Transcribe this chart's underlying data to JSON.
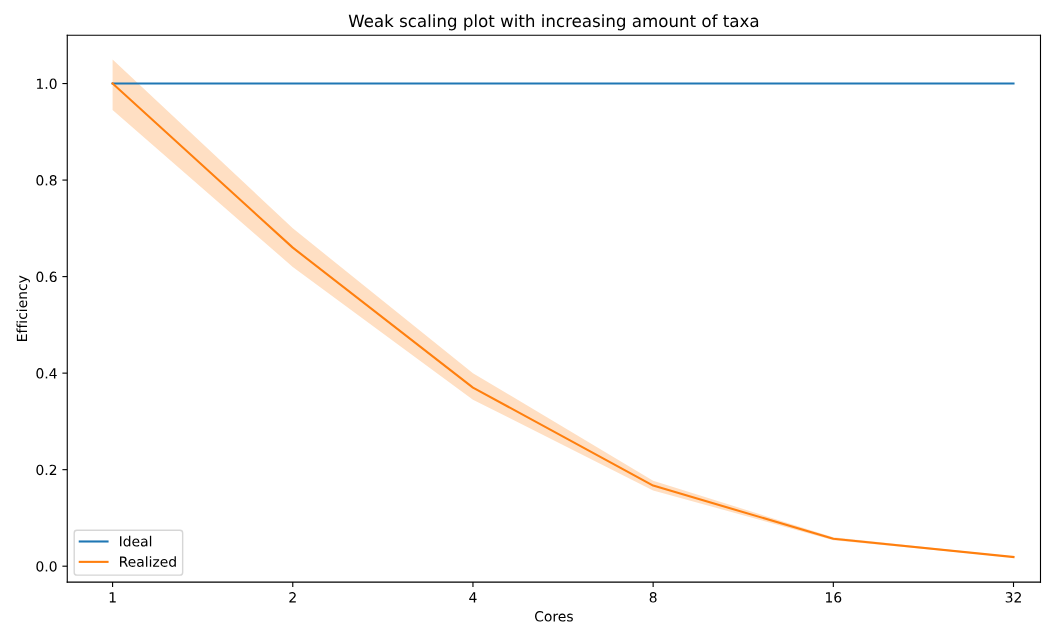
{
  "chart_data": {
    "type": "line",
    "title": "Weak scaling plot with increasing amount of taxa",
    "xlabel": "Cores",
    "ylabel": "Efficiency",
    "x": [
      1,
      2,
      4,
      8,
      16,
      32
    ],
    "log": "x",
    "series": [
      {
        "name": "Ideal",
        "color": "#1f77b4",
        "values": [
          1.0,
          1.0,
          1.0,
          1.0,
          1.0,
          1.0
        ]
      },
      {
        "name": "Realized",
        "color": "#ff7f0e",
        "values": [
          1.0,
          0.66,
          0.37,
          0.167,
          0.057,
          0.019
        ],
        "lower": [
          0.945,
          0.62,
          0.345,
          0.157,
          0.054,
          0.018
        ],
        "upper": [
          1.05,
          0.7,
          0.4,
          0.177,
          0.06,
          0.02
        ]
      }
    ],
    "xlim": [
      0.84,
      35.5
    ],
    "xticks": [
      1,
      2,
      4,
      8,
      16,
      32
    ],
    "ylim": [
      -0.033,
      1.1
    ],
    "yticks": [
      {
        "value": 0,
        "label": "0.0"
      },
      {
        "value": 0.2,
        "label": "0.2"
      },
      {
        "value": 0.4,
        "label": "0.4"
      },
      {
        "value": 0.6,
        "label": "0.6"
      },
      {
        "value": 0.8,
        "label": "0.8"
      },
      {
        "value": 1.0,
        "label": "1.0"
      }
    ],
    "legend": "bottom left",
    "grid": false
  }
}
